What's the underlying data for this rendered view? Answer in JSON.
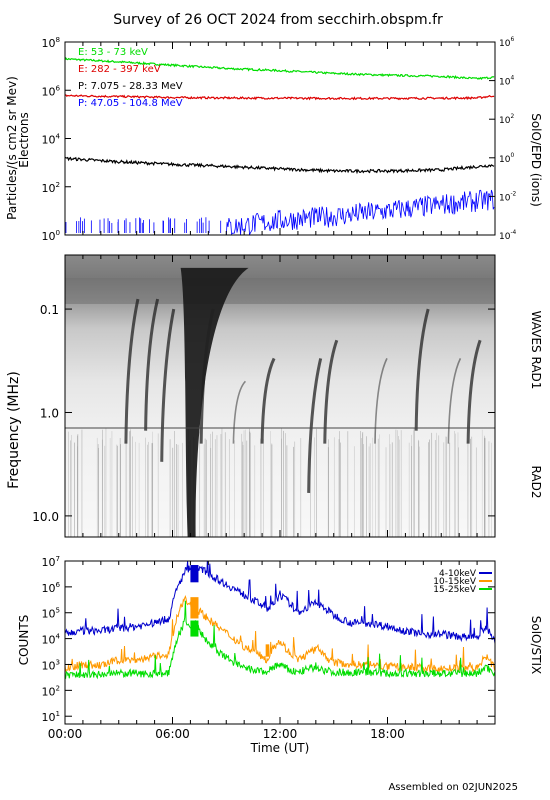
{
  "title": "Survey of 26 OCT 2024 from secchirh.obspm.fr",
  "footer": "Assembled on 02JUN2025",
  "chart_data": [
    {
      "type": "line",
      "panel": "SolO/EPD particles",
      "ylabel": "Particles/(s cm2 sr Mev)",
      "ylabel2": "Electrons",
      "right_label": "SolO/EPD (ions)",
      "yscale": "log",
      "ylim": [
        1,
        1000000
      ],
      "yticks": [
        {
          "exp": 0,
          "label": "10",
          "sup": "0"
        },
        {
          "exp": 2,
          "label": "10",
          "sup": "2"
        },
        {
          "exp": 4,
          "label": "10",
          "sup": "4"
        },
        {
          "exp": 6,
          "label": "10",
          "sup": "6"
        },
        {
          "exp": 8,
          "label": "10",
          "sup": "8"
        }
      ],
      "right_yticks": [
        {
          "label": "10",
          "sup": "-4"
        },
        {
          "label": "10",
          "sup": "-2"
        },
        {
          "label": "10",
          "sup": "0"
        },
        {
          "label": "10",
          "sup": "2"
        },
        {
          "label": "10",
          "sup": "4"
        },
        {
          "label": "10",
          "sup": "6"
        }
      ],
      "xlim_hours": [
        0,
        24
      ],
      "series": [
        {
          "name": "E: 53 - 73 keV",
          "color": "#00dd00",
          "x": [
            0,
            3,
            6,
            9,
            12,
            15,
            18,
            21,
            23,
            24
          ],
          "y": [
            20000000,
            15000000,
            11000000,
            8000000,
            6500000,
            5000000,
            4200000,
            3800000,
            3000000,
            3500000
          ]
        },
        {
          "name": "E: 282 - 397 keV",
          "color": "#dd0000",
          "x": [
            0,
            3,
            6,
            9,
            12,
            15,
            18,
            21,
            23,
            24
          ],
          "y": [
            600000,
            550000,
            500000,
            480000,
            470000,
            460000,
            460000,
            470000,
            480000,
            600000
          ]
        },
        {
          "name": "P: 7.075 - 28.33 MeV",
          "color": "#000000",
          "x": [
            0,
            2,
            4,
            6,
            9,
            12,
            15,
            18,
            21,
            24
          ],
          "y": [
            1500,
            1200,
            1000,
            850,
            700,
            550,
            450,
            450,
            500,
            800
          ]
        },
        {
          "name": "P: 47.05 - 104.8 MeV",
          "color": "#0000ff",
          "x": [
            9,
            12,
            15,
            18,
            21,
            24
          ],
          "y": [
            2,
            4,
            6,
            10,
            18,
            30
          ]
        }
      ]
    },
    {
      "type": "heatmap",
      "panel": "radio dynamic spectrum",
      "ylabel": "Frequency (MHz)",
      "yscale": "log",
      "ylim": [
        0.03,
        16
      ],
      "yticks": [
        "0.1",
        "1.0",
        "10.0"
      ],
      "right_labels": [
        "WAVES RAD1",
        "RAD2"
      ],
      "xlim_hours": [
        0,
        24
      ],
      "bursts": [
        {
          "t": 3.4,
          "f_start": 0.08,
          "f_end": 2,
          "intensity": "medium"
        },
        {
          "t": 4.5,
          "f_start": 0.08,
          "f_end": 1.5,
          "intensity": "medium"
        },
        {
          "t": 5.4,
          "f_start": 0.1,
          "f_end": 3,
          "intensity": "medium"
        },
        {
          "t": 6.9,
          "f_start": 0.04,
          "f_end": 16,
          "intensity": "strong"
        },
        {
          "t": 7.6,
          "f_start": 0.1,
          "f_end": 2,
          "intensity": "medium"
        },
        {
          "t": 9.4,
          "f_start": 0.5,
          "f_end": 2,
          "intensity": "weak"
        },
        {
          "t": 11.0,
          "f_start": 0.3,
          "f_end": 2,
          "intensity": "medium"
        },
        {
          "t": 13.6,
          "f_start": 0.3,
          "f_end": 6,
          "intensity": "medium"
        },
        {
          "t": 14.5,
          "f_start": 0.2,
          "f_end": 2,
          "intensity": "medium"
        },
        {
          "t": 17.3,
          "f_start": 0.3,
          "f_end": 2,
          "intensity": "weak"
        },
        {
          "t": 19.6,
          "f_start": 0.1,
          "f_end": 1.5,
          "intensity": "medium"
        },
        {
          "t": 21.4,
          "f_start": 0.3,
          "f_end": 2,
          "intensity": "weak"
        },
        {
          "t": 22.5,
          "f_start": 0.2,
          "f_end": 2,
          "intensity": "medium"
        }
      ]
    },
    {
      "type": "line",
      "panel": "SolO/STIX X-ray counts",
      "ylabel": "COUNTS",
      "right_label": "SolO/STIX",
      "xlabel": "Time (UT)",
      "xticklabels": [
        "00:00",
        "06:00",
        "12:00",
        "18:00"
      ],
      "xticks_hours": [
        0,
        6,
        12,
        18
      ],
      "yscale": "log",
      "ylim": [
        5,
        10000000
      ],
      "yticks": [
        {
          "exp": 7,
          "label": "10",
          "sup": "7"
        },
        {
          "exp": 6,
          "label": "10",
          "sup": "6"
        },
        {
          "exp": 5,
          "label": "10",
          "sup": "5"
        },
        {
          "exp": 4,
          "label": "10",
          "sup": "4"
        },
        {
          "exp": 3,
          "label": "10",
          "sup": "3"
        },
        {
          "exp": 2,
          "label": "10",
          "sup": "2"
        },
        {
          "exp": 1,
          "label": "10",
          "sup": "1"
        }
      ],
      "legend_position": "top-right",
      "series": [
        {
          "name": "4-10keV",
          "color": "#0000cc",
          "x": [
            0,
            1,
            2,
            3,
            4,
            5,
            5.8,
            6.2,
            6.7,
            7.0,
            7.3,
            7.6,
            8.5,
            10,
            11.3,
            11.6,
            12,
            12.5,
            13,
            14,
            14.5,
            15,
            16,
            17,
            18,
            19,
            20,
            21,
            22,
            23,
            23.5,
            24
          ],
          "y": [
            15000,
            20000,
            20000,
            25000,
            30000,
            40000,
            60000,
            700000,
            4000000,
            6000000,
            3000000,
            5000000,
            2000000,
            500000,
            150000,
            200000,
            500000,
            250000,
            100000,
            250000,
            150000,
            80000,
            40000,
            40000,
            30000,
            20000,
            15000,
            15000,
            12000,
            10000,
            30000,
            8000
          ]
        },
        {
          "name": "10-15keV",
          "color": "#ff9900",
          "x": [
            0,
            1,
            2,
            3,
            4,
            5,
            5.8,
            6.2,
            6.7,
            7.0,
            7.3,
            7.6,
            8.5,
            10,
            11.3,
            11.6,
            12,
            12.5,
            13,
            14,
            14.5,
            15,
            16,
            17,
            18,
            19,
            20,
            21,
            22,
            23,
            23.5,
            24
          ],
          "y": [
            700,
            1000,
            900,
            1500,
            1500,
            2000,
            2500,
            50000,
            400000,
            200000,
            150000,
            100000,
            30000,
            5000,
            1500,
            5000,
            8000,
            3000,
            1500,
            4000,
            2000,
            1200,
            1000,
            1000,
            800,
            800,
            700,
            700,
            700,
            700,
            2000,
            700
          ]
        },
        {
          "name": "15-25keV",
          "color": "#00dd00",
          "x": [
            0,
            1,
            2,
            3,
            4,
            5,
            5.8,
            6.2,
            6.7,
            7.0,
            7.3,
            7.6,
            8.5,
            10,
            11.3,
            11.6,
            12,
            12.5,
            13,
            14,
            14.5,
            15,
            16,
            17,
            18,
            19,
            20,
            21,
            22,
            23,
            23.5,
            24
          ],
          "y": [
            400,
            400,
            400,
            450,
            450,
            450,
            450,
            8000,
            50000,
            30000,
            40000,
            15000,
            3000,
            700,
            500,
            800,
            1000,
            600,
            500,
            800,
            600,
            500,
            500,
            500,
            450,
            450,
            450,
            450,
            450,
            450,
            800,
            450
          ]
        }
      ]
    }
  ]
}
